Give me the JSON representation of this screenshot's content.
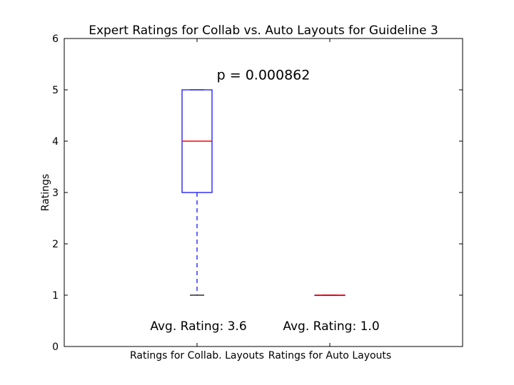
{
  "chart_data": {
    "type": "box",
    "title": "Expert Ratings for Collab vs. Auto Layouts for Guideline 3",
    "xlabel": "",
    "ylabel": "Ratings",
    "ylim": [
      0,
      6
    ],
    "yticks": [
      "0",
      "1",
      "2",
      "3",
      "4",
      "5",
      "6"
    ],
    "categories": [
      "Ratings for Collab. Layouts",
      "Ratings for Auto Layouts"
    ],
    "boxes": [
      {
        "whisker_low": 1,
        "q1": 3,
        "median": 4,
        "q3": 5,
        "whisker_high": 5,
        "avg_label": "Avg. Rating: 3.6"
      },
      {
        "whisker_low": 1,
        "q1": 1,
        "median": 1,
        "q3": 1,
        "whisker_high": 1,
        "avg_label": "Avg. Rating: 1.0"
      }
    ],
    "annotation": "p = 0.000862",
    "grid": false,
    "colors": {
      "box": "#0000ff",
      "median": "#ff0000",
      "whisker": "#0000ff",
      "cap": "#000000"
    }
  }
}
